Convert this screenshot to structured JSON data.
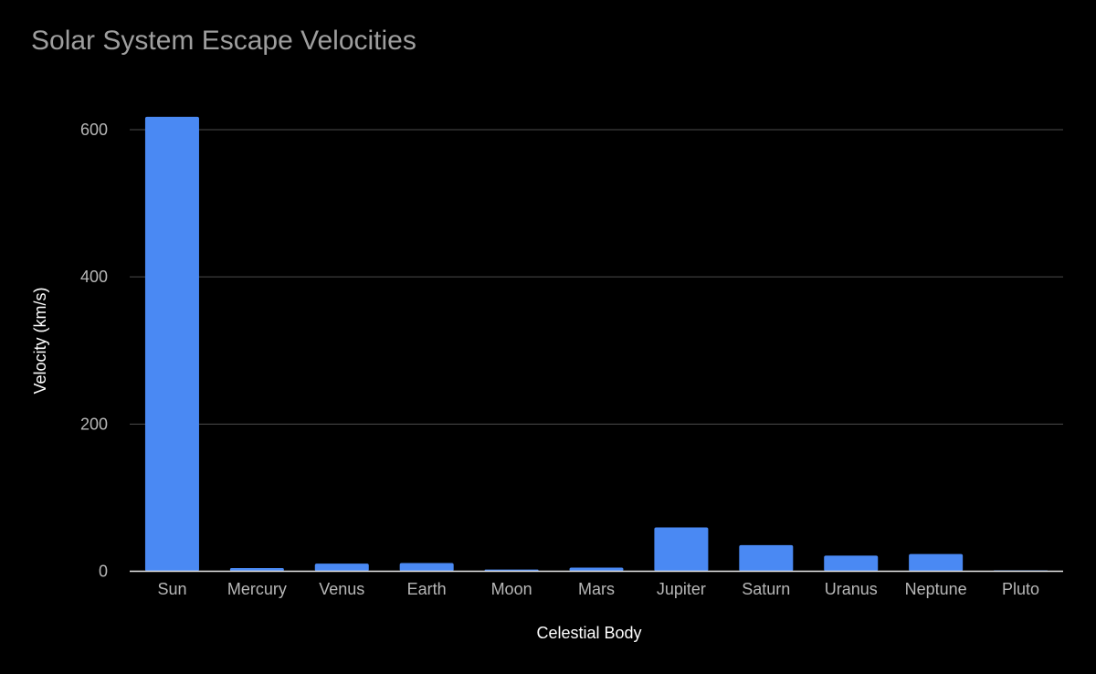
{
  "chart_data": {
    "type": "bar",
    "title": "Solar System Escape Velocities",
    "xlabel": "Celestial Body",
    "ylabel": "Velocity (km/s)",
    "categories": [
      "Sun",
      "Mercury",
      "Venus",
      "Earth",
      "Moon",
      "Mars",
      "Jupiter",
      "Saturn",
      "Uranus",
      "Neptune",
      "Pluto"
    ],
    "values": [
      617.5,
      4.3,
      10.4,
      11.2,
      2.4,
      5.0,
      59.5,
      35.5,
      21.3,
      23.5,
      1.2
    ],
    "ylim": [
      0,
      600
    ],
    "yticks": [
      0,
      200,
      400,
      600
    ],
    "ytick_labels": [
      "0",
      "200",
      "400",
      "600"
    ],
    "grid": true,
    "legend": "none",
    "bar_color": "#4a89f3",
    "background_color": "#000000"
  }
}
